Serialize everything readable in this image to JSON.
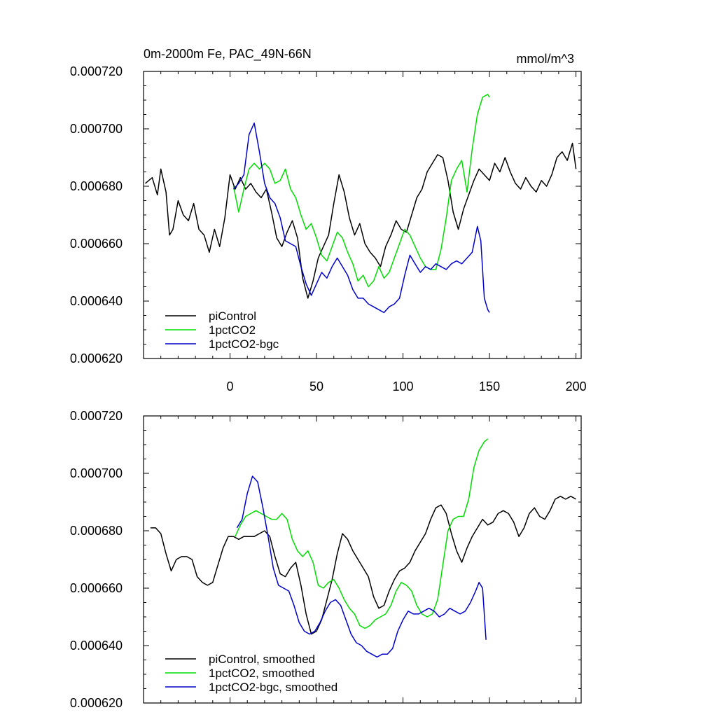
{
  "chart_data": [
    {
      "type": "line",
      "title_left": "0m-2000m Fe, PAC_49N-66N",
      "title_right": "mmol/m^3",
      "xlim": [
        -50,
        203
      ],
      "ylim": [
        0.00062,
        0.00072
      ],
      "x_ticks": [
        0,
        50,
        100,
        150,
        200
      ],
      "x_tick_labels": [
        "0",
        "50",
        "100",
        "150",
        "200"
      ],
      "y_ticks": [
        0.00062,
        0.00064,
        0.00066,
        0.00068,
        0.0007,
        0.00072
      ],
      "y_tick_labels": [
        "0.000620",
        "0.000640",
        "0.000660",
        "0.000680",
        "0.000700",
        "0.000720"
      ],
      "legend_position": "bottom-left",
      "series": [
        {
          "name": "piControl",
          "color": "#000000",
          "x": [
            -49,
            -45,
            -42,
            -40,
            -37,
            -35,
            -33,
            -30,
            -27,
            -24,
            -21,
            -18,
            -15,
            -12,
            -9,
            -6,
            -3,
            0,
            3,
            6,
            9,
            12,
            15,
            18,
            21,
            24,
            27,
            30,
            33,
            36,
            39,
            42,
            45,
            48,
            51,
            54,
            57,
            60,
            63,
            66,
            69,
            72,
            75,
            78,
            81,
            84,
            87,
            90,
            93,
            96,
            99,
            102,
            105,
            108,
            111,
            114,
            117,
            120,
            123,
            126,
            129,
            132,
            135,
            138,
            141,
            144,
            147,
            150,
            153,
            156,
            159,
            162,
            165,
            168,
            171,
            174,
            177,
            180,
            183,
            186,
            189,
            192,
            195,
            198,
            200
          ],
          "values": [
            0.000681,
            0.000683,
            0.000677,
            0.000686,
            0.000678,
            0.000663,
            0.000665,
            0.000675,
            0.00067,
            0.000668,
            0.000674,
            0.000665,
            0.000663,
            0.000657,
            0.000665,
            0.000659,
            0.000669,
            0.000684,
            0.000679,
            0.000683,
            0.000679,
            0.000681,
            0.000678,
            0.000676,
            0.000679,
            0.000671,
            0.000662,
            0.000659,
            0.000664,
            0.000668,
            0.000662,
            0.000648,
            0.000641,
            0.000647,
            0.000655,
            0.000659,
            0.000663,
            0.000674,
            0.000684,
            0.000678,
            0.000669,
            0.000663,
            0.000667,
            0.00066,
            0.000657,
            0.000655,
            0.000652,
            0.000659,
            0.000663,
            0.000668,
            0.000665,
            0.000664,
            0.00067,
            0.000676,
            0.000679,
            0.000685,
            0.000688,
            0.000691,
            0.00069,
            0.000682,
            0.000671,
            0.000665,
            0.000672,
            0.000677,
            0.000682,
            0.000686,
            0.000684,
            0.000682,
            0.000688,
            0.000685,
            0.00069,
            0.000685,
            0.000681,
            0.000679,
            0.000683,
            0.00068,
            0.000678,
            0.000682,
            0.00068,
            0.000684,
            0.00069,
            0.000692,
            0.000689,
            0.000695,
            0.000686
          ]
        },
        {
          "name": "1pctCO2",
          "color": "#00dd00",
          "x": [
            2,
            5,
            8,
            11,
            14,
            17,
            20,
            23,
            26,
            29,
            32,
            35,
            38,
            41,
            44,
            47,
            50,
            53,
            56,
            59,
            62,
            65,
            68,
            71,
            74,
            77,
            80,
            83,
            86,
            89,
            92,
            95,
            98,
            101,
            104,
            107,
            110,
            113,
            116,
            119,
            122,
            125,
            128,
            131,
            134,
            137,
            140,
            143,
            146,
            149,
            150
          ],
          "values": [
            0.00068,
            0.000671,
            0.000679,
            0.000686,
            0.000688,
            0.000686,
            0.000688,
            0.000686,
            0.000681,
            0.000682,
            0.000686,
            0.000679,
            0.000676,
            0.00067,
            0.000665,
            0.000667,
            0.000662,
            0.000656,
            0.000654,
            0.000659,
            0.000664,
            0.000662,
            0.000657,
            0.000653,
            0.000647,
            0.000649,
            0.000645,
            0.000647,
            0.000652,
            0.000648,
            0.00065,
            0.000655,
            0.00066,
            0.000665,
            0.000663,
            0.000659,
            0.000655,
            0.000652,
            0.000651,
            0.000651,
            0.000658,
            0.000669,
            0.000682,
            0.000686,
            0.000689,
            0.000678,
            0.000693,
            0.000705,
            0.000711,
            0.000712,
            0.000711
          ]
        },
        {
          "name": "1pctCO2-bgc",
          "color": "#0000cc",
          "x": [
            2,
            5,
            8,
            11,
            14,
            17,
            20,
            23,
            26,
            29,
            32,
            35,
            38,
            41,
            44,
            47,
            50,
            53,
            56,
            59,
            62,
            65,
            68,
            71,
            74,
            77,
            80,
            83,
            86,
            89,
            92,
            95,
            98,
            101,
            104,
            107,
            110,
            113,
            116,
            119,
            122,
            125,
            128,
            131,
            134,
            137,
            140,
            143,
            145,
            147,
            149,
            150
          ],
          "values": [
            0.000679,
            0.000681,
            0.000684,
            0.000698,
            0.000702,
            0.000692,
            0.000681,
            0.000676,
            0.000674,
            0.000669,
            0.000661,
            0.00066,
            0.000659,
            0.000652,
            0.000646,
            0.000642,
            0.000646,
            0.00065,
            0.000648,
            0.000652,
            0.000655,
            0.000652,
            0.000649,
            0.000644,
            0.000641,
            0.000641,
            0.000639,
            0.000638,
            0.000637,
            0.000636,
            0.000638,
            0.000639,
            0.000641,
            0.000649,
            0.000656,
            0.000653,
            0.00065,
            0.000652,
            0.000651,
            0.000653,
            0.000652,
            0.000651,
            0.000653,
            0.000654,
            0.000653,
            0.000655,
            0.000657,
            0.000666,
            0.000661,
            0.000641,
            0.000637,
            0.000636
          ]
        }
      ]
    },
    {
      "type": "line",
      "xlim": [
        -50,
        203
      ],
      "ylim": [
        0.00062,
        0.00072
      ],
      "y_ticks": [
        0.00062,
        0.00064,
        0.00066,
        0.00068,
        0.0007,
        0.00072
      ],
      "y_tick_labels": [
        "0.000620",
        "0.000640",
        "0.000660",
        "0.000680",
        "0.000700",
        "0.000720"
      ],
      "legend_position": "bottom-left",
      "series": [
        {
          "name": "piControl, smoothed",
          "color": "#000000",
          "x": [
            -46,
            -43,
            -40,
            -37,
            -34,
            -31,
            -28,
            -25,
            -22,
            -19,
            -16,
            -13,
            -10,
            -7,
            -4,
            -1,
            2,
            5,
            8,
            11,
            14,
            17,
            20,
            23,
            26,
            29,
            32,
            35,
            38,
            41,
            44,
            47,
            50,
            53,
            56,
            59,
            62,
            65,
            68,
            71,
            74,
            77,
            80,
            83,
            86,
            89,
            92,
            95,
            98,
            101,
            104,
            107,
            110,
            113,
            116,
            119,
            122,
            125,
            128,
            131,
            134,
            137,
            140,
            143,
            146,
            149,
            152,
            155,
            158,
            161,
            164,
            167,
            170,
            173,
            176,
            179,
            182,
            185,
            188,
            191,
            194,
            197,
            200
          ],
          "values": [
            0.000681,
            0.000681,
            0.000679,
            0.000672,
            0.000666,
            0.00067,
            0.000671,
            0.000671,
            0.00067,
            0.000664,
            0.000662,
            0.000661,
            0.000662,
            0.000668,
            0.000674,
            0.000678,
            0.000678,
            0.000677,
            0.000678,
            0.000678,
            0.000678,
            0.000679,
            0.00068,
            0.000678,
            0.000671,
            0.000665,
            0.000664,
            0.000667,
            0.000669,
            0.000661,
            0.000651,
            0.000644,
            0.000645,
            0.000649,
            0.000656,
            0.000663,
            0.000672,
            0.000679,
            0.000677,
            0.000673,
            0.00067,
            0.000667,
            0.000664,
            0.000657,
            0.000653,
            0.000654,
            0.000659,
            0.000663,
            0.000666,
            0.000667,
            0.000669,
            0.000673,
            0.000676,
            0.000679,
            0.000684,
            0.000688,
            0.000689,
            0.000686,
            0.000679,
            0.000673,
            0.000669,
            0.000674,
            0.000678,
            0.000681,
            0.000684,
            0.000682,
            0.000683,
            0.000686,
            0.000687,
            0.000686,
            0.000683,
            0.000678,
            0.000681,
            0.000686,
            0.000688,
            0.000685,
            0.000684,
            0.000687,
            0.000691,
            0.000692,
            0.000691,
            0.000692,
            0.000691
          ]
        },
        {
          "name": "1pctCO2, smoothed",
          "color": "#00dd00",
          "x": [
            3,
            6,
            9,
            12,
            15,
            18,
            21,
            24,
            27,
            30,
            33,
            36,
            39,
            42,
            45,
            48,
            51,
            54,
            57,
            60,
            63,
            66,
            69,
            72,
            75,
            78,
            81,
            84,
            87,
            90,
            93,
            96,
            99,
            102,
            105,
            108,
            111,
            114,
            117,
            120,
            123,
            126,
            129,
            132,
            135,
            138,
            141,
            144,
            147,
            149
          ],
          "values": [
            0.000678,
            0.000682,
            0.000685,
            0.000686,
            0.000687,
            0.000686,
            0.000685,
            0.000684,
            0.000684,
            0.000686,
            0.000684,
            0.000677,
            0.000673,
            0.000671,
            0.000673,
            0.000669,
            0.000661,
            0.00066,
            0.000662,
            0.000663,
            0.00066,
            0.000656,
            0.000653,
            0.000651,
            0.000647,
            0.000646,
            0.000647,
            0.000649,
            0.00065,
            0.000651,
            0.000654,
            0.000659,
            0.000662,
            0.000661,
            0.000659,
            0.000654,
            0.000651,
            0.00065,
            0.000651,
            0.000656,
            0.000668,
            0.00068,
            0.000684,
            0.000685,
            0.000685,
            0.000691,
            0.000702,
            0.000708,
            0.000711,
            0.000712
          ]
        },
        {
          "name": "1pctCO2-bgc, smoothed",
          "color": "#0000cc",
          "x": [
            4,
            7,
            10,
            13,
            16,
            19,
            22,
            25,
            28,
            31,
            34,
            37,
            40,
            43,
            46,
            49,
            52,
            55,
            58,
            61,
            64,
            67,
            70,
            73,
            76,
            79,
            82,
            85,
            88,
            91,
            94,
            97,
            100,
            103,
            106,
            109,
            112,
            115,
            118,
            121,
            124,
            127,
            130,
            133,
            136,
            139,
            142,
            144,
            146,
            148
          ],
          "values": [
            0.000681,
            0.000684,
            0.000693,
            0.000699,
            0.000697,
            0.000688,
            0.000678,
            0.000667,
            0.000661,
            0.00066,
            0.000659,
            0.000654,
            0.000648,
            0.000645,
            0.000644,
            0.000645,
            0.000648,
            0.000652,
            0.000655,
            0.000656,
            0.000654,
            0.000649,
            0.000644,
            0.000641,
            0.00064,
            0.000638,
            0.000637,
            0.000636,
            0.000637,
            0.000637,
            0.000639,
            0.000645,
            0.000649,
            0.000652,
            0.000651,
            0.000651,
            0.000652,
            0.000653,
            0.000652,
            0.00065,
            0.000651,
            0.000653,
            0.000652,
            0.000651,
            0.000652,
            0.000655,
            0.000659,
            0.000662,
            0.00066,
            0.000642
          ]
        }
      ]
    }
  ]
}
